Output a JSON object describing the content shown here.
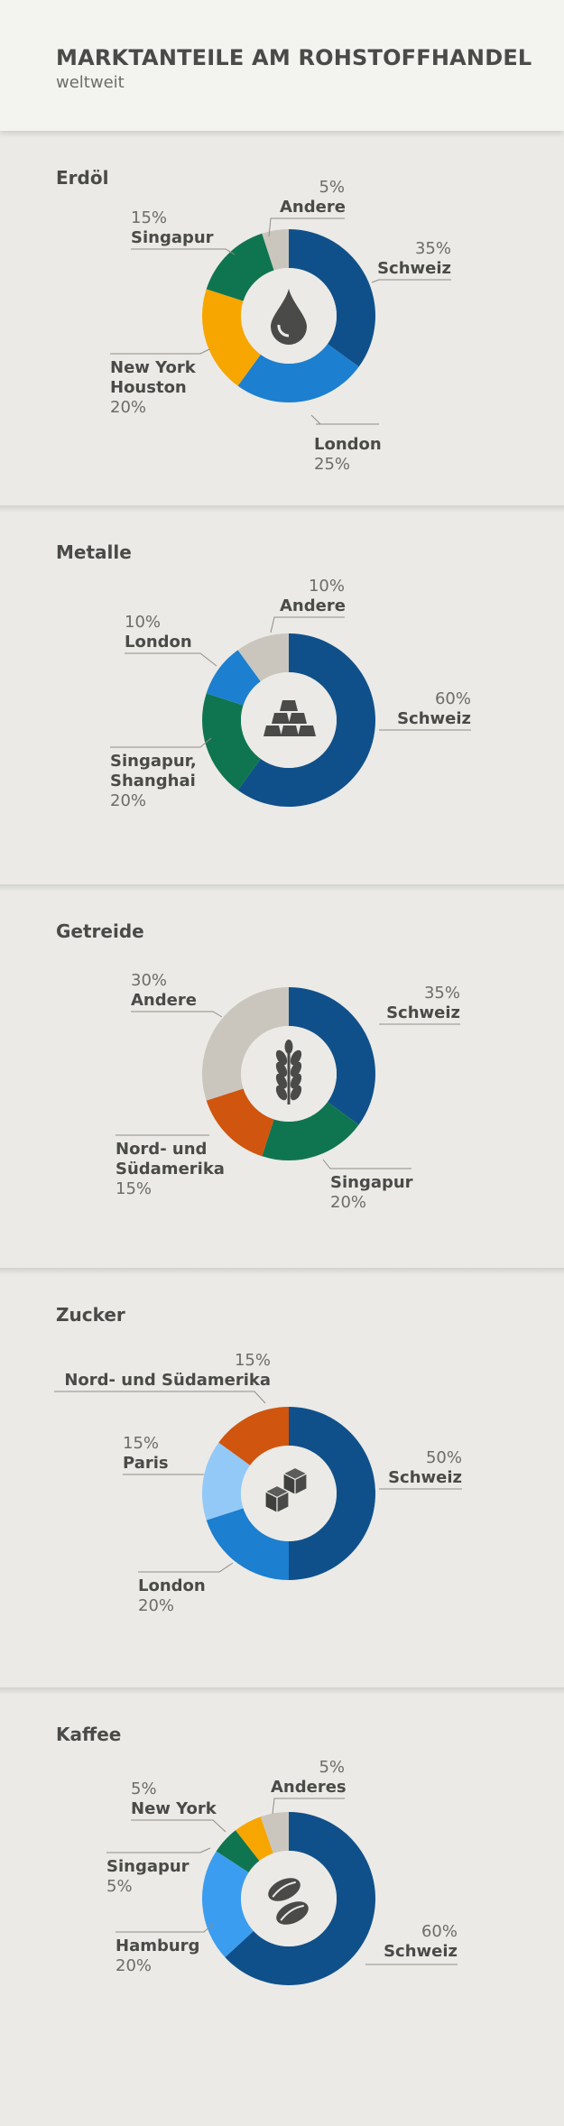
{
  "header": {
    "title": "MARKTANTEILE AM ROHSTOFFHANDEL",
    "subtitle": "weltweit"
  },
  "chart_data": [
    {
      "type": "pie",
      "title": "Erdöl",
      "icon": "oil-drop-icon",
      "slices": [
        {
          "label": "Schweiz",
          "value": 35,
          "pct_text": "35%",
          "color": "#10508a"
        },
        {
          "label": "London",
          "value": 25,
          "pct_text": "25%",
          "color": "#1c7fd0"
        },
        {
          "label": "New York\nHouston",
          "value": 20,
          "pct_text": "20%",
          "color": "#f7a600"
        },
        {
          "label": "Singapur",
          "value": 15,
          "pct_text": "15%",
          "color": "#0f7550"
        },
        {
          "label": "Andere",
          "value": 5,
          "pct_text": "5%",
          "color": "#cac6be"
        }
      ]
    },
    {
      "type": "pie",
      "title": "Metalle",
      "icon": "gold-bars-icon",
      "slices": [
        {
          "label": "Schweiz",
          "value": 60,
          "pct_text": "60%",
          "color": "#10508a"
        },
        {
          "label": "Singapur,\nShanghai",
          "value": 20,
          "pct_text": "20%",
          "color": "#0f7550"
        },
        {
          "label": "London",
          "value": 10,
          "pct_text": "10%",
          "color": "#1c7fd0"
        },
        {
          "label": "Andere",
          "value": 10,
          "pct_text": "10%",
          "color": "#cac6be"
        }
      ]
    },
    {
      "type": "pie",
      "title": "Getreide",
      "icon": "wheat-icon",
      "slices": [
        {
          "label": "Schweiz",
          "value": 35,
          "pct_text": "35%",
          "color": "#10508a"
        },
        {
          "label": "Singapur",
          "value": 20,
          "pct_text": "20%",
          "color": "#0f7550"
        },
        {
          "label": "Nord- und\nSüdamerika",
          "value": 15,
          "pct_text": "15%",
          "color": "#d0550f"
        },
        {
          "label": "Andere",
          "value": 30,
          "pct_text": "30%",
          "color": "#cac6be"
        }
      ]
    },
    {
      "type": "pie",
      "title": "Zucker",
      "icon": "sugar-cubes-icon",
      "slices": [
        {
          "label": "Schweiz",
          "value": 50,
          "pct_text": "50%",
          "color": "#10508a"
        },
        {
          "label": "London",
          "value": 20,
          "pct_text": "20%",
          "color": "#1c7fd0"
        },
        {
          "label": "Paris",
          "value": 15,
          "pct_text": "15%",
          "color": "#93c9f7"
        },
        {
          "label": "Nord- und Südamerika",
          "value": 15,
          "pct_text": "15%",
          "color": "#d0550f"
        }
      ]
    },
    {
      "type": "pie",
      "title": "Kaffee",
      "icon": "coffee-beans-icon",
      "slices": [
        {
          "label": "Schweiz",
          "value": 60,
          "pct_text": "60%",
          "color": "#10508a"
        },
        {
          "label": "Hamburg",
          "value": 20,
          "pct_text": "20%",
          "color": "#3b9df0"
        },
        {
          "label": "Singapur",
          "value": 5,
          "pct_text": "5%",
          "color": "#0f7550"
        },
        {
          "label": "New York",
          "value": 5,
          "pct_text": "5%",
          "color": "#f7a600"
        },
        {
          "label": "Anderes",
          "value": 5,
          "pct_text": "5%",
          "color": "#cac6be"
        }
      ]
    }
  ]
}
